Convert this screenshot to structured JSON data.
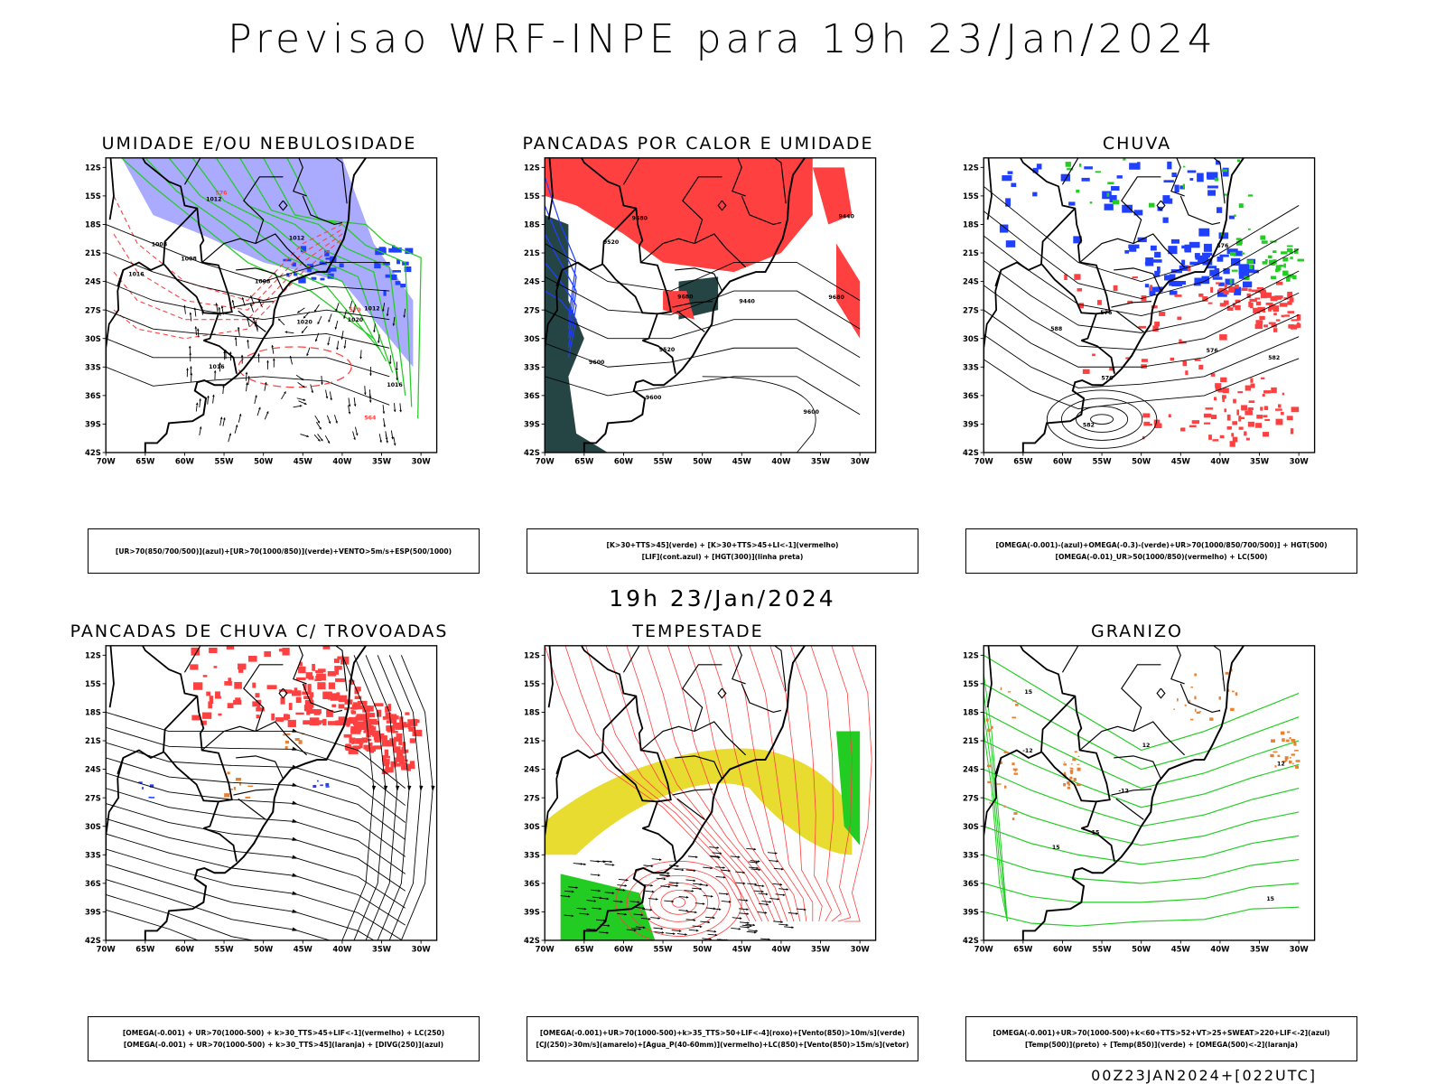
{
  "main_title": "Previsao WRF-INPE  para 19h 23/Jan/2024",
  "mid_title": "19h 23/Jan/2024",
  "footer": "00Z23JAN2024+[022UTC]",
  "lat_labels": [
    "12S",
    "15S",
    "18S",
    "21S",
    "24S",
    "27S",
    "30S",
    "33S",
    "36S",
    "39S",
    "42S"
  ],
  "lon_labels": [
    "70W",
    "65W",
    "60W",
    "55W",
    "50W",
    "45W",
    "40W",
    "35W",
    "30W"
  ],
  "colors": {
    "blue": "#2040ff",
    "lightblue": "#aaaaff",
    "green": "#22cc22",
    "red": "#ff4040",
    "darkgreen": "#254545",
    "yellow": "#e8dc30",
    "orange": "#e88030"
  },
  "panels": [
    {
      "title": "UMIDADE E/OU NEBULOSIDADE",
      "legend": [
        "[UR>70(850/700/500)](azul)+[UR>70(1000/850)](verde)+VENTO>5m/s+ESP(500/1000)"
      ],
      "contour_labels": [
        "1008",
        "1008",
        "1008",
        "1012",
        "1016",
        "1012",
        "1016",
        "1020",
        "1016",
        "1020",
        "576",
        "570",
        "564",
        "1012"
      ]
    },
    {
      "title": "PANCADAS POR CALOR E UMIDADE",
      "legend": [
        "[K>30+TTS>45](verde) + [K>30+TTS>45+LI<-1](vermelho)",
        "[LIF](cont.azul) + [HGT(300)](linha preta)"
      ],
      "contour_labels": [
        "9680",
        "9680",
        "9680",
        "9600",
        "9600",
        "9520",
        "9440",
        "9600",
        "9520",
        "9440"
      ]
    },
    {
      "title": "CHUVA",
      "legend": [
        "[OMEGA(-0.001)-(azul)+OMEGA(-0.3)-(verde)+UR>70(1000/850/700/500)] + HGT(500)",
        "[OMEGA(-0.01)_UR>50(1000/850)(vermelho) + LC(500)"
      ],
      "contour_labels": [
        "582",
        "576",
        "576",
        "576",
        "582",
        "576",
        "588"
      ]
    },
    {
      "title": "PANCADAS DE CHUVA C/ TROVOADAS",
      "legend": [
        "[OMEGA(-0.001) + UR>70(1000-500) + k>30_TTS>45+LIF<-1](vermelho) + LC(250)",
        "[OMEGA(-0.001) + UR>70(1000-500) + k>30_TTS>45](laranja) + [DIVG(250)](azul)"
      ],
      "contour_labels": []
    },
    {
      "title": "TEMPESTADE",
      "legend": [
        "[OMEGA(-0.001)+UR>70(1000-500)+k>35_TTS>50+LIF<-4](roxo)+[Vento(850)>10m/s](verde)",
        "[CJ(250)>30m/s](amarelo)+[Agua_P(40-60mm)](vermelho)+LC(850)+[Vento(850)>15m/s](vetor)"
      ],
      "contour_labels": []
    },
    {
      "title": "GRANIZO",
      "legend": [
        "[OMEGA(-0.001)+UR>70(1000-500)+k<60+TTS>52+VT>25+SWEAT>220+LIF<-2](azul)",
        "[Temp(500)](preto) + [Temp(850)](verde) + [OMEGA(500)<-2](laranja)"
      ],
      "contour_labels": [
        "-12",
        "-12",
        "15",
        "12",
        "15",
        "12",
        "15",
        "15"
      ]
    }
  ]
}
